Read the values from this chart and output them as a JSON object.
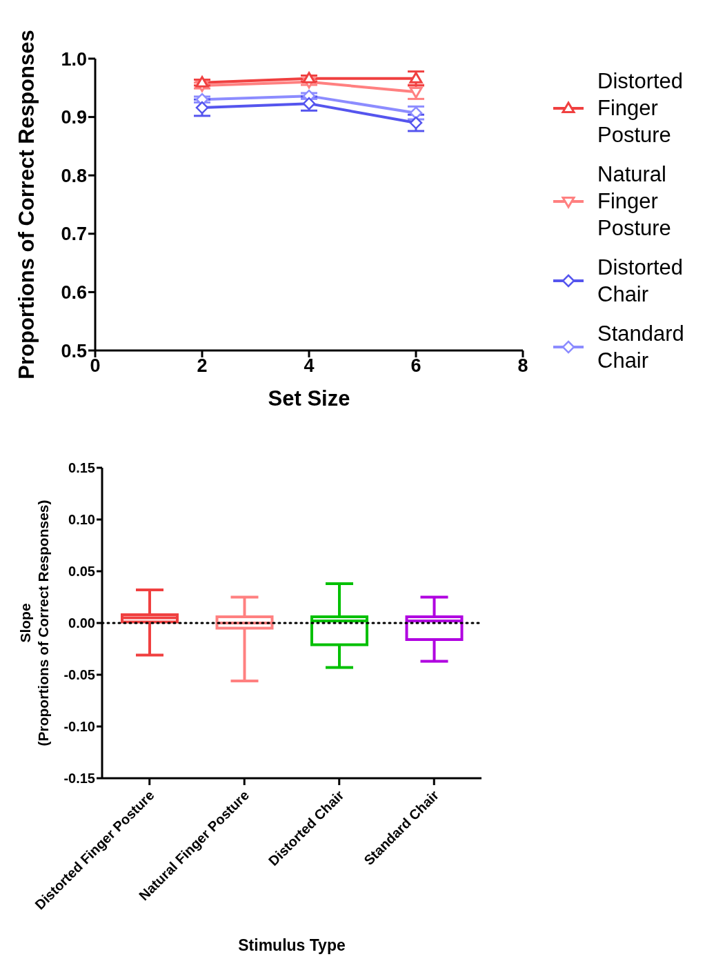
{
  "chart_data": [
    {
      "type": "line",
      "xlabel": "Set Size",
      "ylabel": "Proportions of Correct Responses",
      "x": [
        2,
        4,
        6
      ],
      "xlim": [
        0,
        8
      ],
      "xticks": [
        0,
        2,
        4,
        6,
        8
      ],
      "ylim": [
        0.5,
        1.0
      ],
      "yticks": [
        0.5,
        0.6,
        0.7,
        0.8,
        0.9,
        {
          "value": 1.0,
          "label": "1.0"
        }
      ],
      "legend": "right",
      "series": [
        {
          "name": "Distorted Finger Posture",
          "color": "#f04040",
          "marker": "triangle",
          "values": [
            0.959,
            0.966,
            0.966
          ],
          "errors": [
            0.005,
            0.005,
            0.012
          ]
        },
        {
          "name": "Natural Finger Posture",
          "color": "#ff8080",
          "marker": "triangle-down",
          "values": [
            0.954,
            0.96,
            0.943
          ],
          "errors": [
            0.005,
            0.005,
            0.012
          ]
        },
        {
          "name": "Distorted Chair",
          "color": "#5555ee",
          "marker": "diamond",
          "values": [
            0.916,
            0.923,
            0.89
          ],
          "errors": [
            0.014,
            0.012,
            0.014
          ]
        },
        {
          "name": "Standard Chair",
          "color": "#8c8cff",
          "marker": "diamond",
          "values": [
            0.93,
            0.936,
            0.907
          ],
          "errors": [
            0.005,
            0.005,
            0.011
          ]
        }
      ]
    },
    {
      "type": "box",
      "xlabel": "Stimulus Type",
      "ylabel": "Slope\n(Proportions of Correct Responses)",
      "categories": [
        "Distorted Finger Posture",
        "Natural Finger Posture",
        "Distorted Chair",
        "Standard Chair"
      ],
      "colors": [
        "#f04040",
        "#ff8080",
        "#00c000",
        "#b000e0"
      ],
      "ylim": [
        -0.15,
        0.15
      ],
      "yticks": [
        {
          "value": -0.15,
          "label": "-0.15"
        },
        {
          "value": -0.1,
          "label": "-0.10"
        },
        {
          "value": -0.05,
          "label": "-0.05"
        },
        {
          "value": 0,
          "label": "0.00"
        },
        {
          "value": 0.05,
          "label": "0.05"
        },
        {
          "value": 0.1,
          "label": "0.10"
        },
        {
          "value": 0.15,
          "label": "0.15"
        }
      ],
      "ref_lines": [
        {
          "axis": "y",
          "value": 0,
          "color": "#000000",
          "line_style": "dotted"
        }
      ],
      "boxes": [
        {
          "low": -0.031,
          "q1": 0.001,
          "median": 0.005,
          "q3": 0.008,
          "high": 0.032
        },
        {
          "low": -0.056,
          "q1": -0.005,
          "median": 0.0,
          "q3": 0.006,
          "high": 0.025
        },
        {
          "low": -0.043,
          "q1": -0.021,
          "median": 0.002,
          "q3": 0.006,
          "high": 0.038
        },
        {
          "low": -0.037,
          "q1": -0.016,
          "median": 0.002,
          "q3": 0.006,
          "high": 0.025
        }
      ]
    }
  ]
}
